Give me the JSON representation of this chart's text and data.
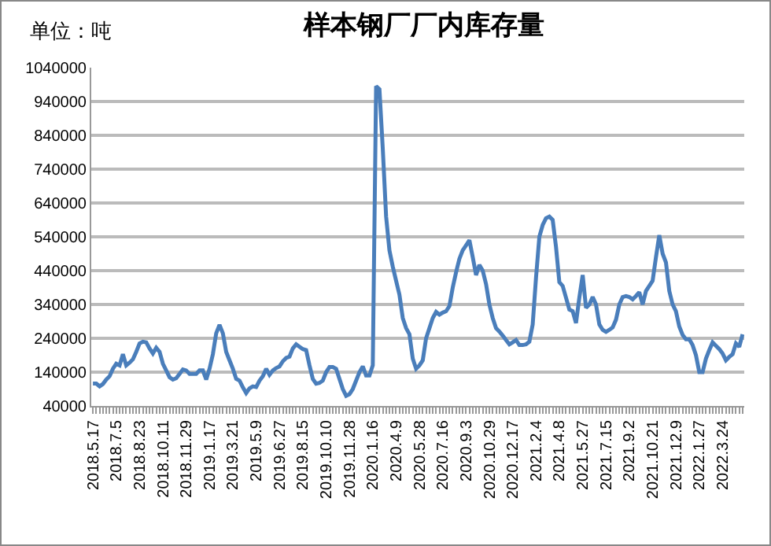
{
  "chart_data": {
    "type": "line",
    "title": "样本钢厂厂内库存量",
    "annotations": [
      "单位：吨"
    ],
    "categories": [
      "2018.5.17",
      null,
      null,
      null,
      null,
      null,
      null,
      "2018.7.5",
      null,
      null,
      null,
      null,
      null,
      null,
      "2018.8.23",
      null,
      null,
      null,
      null,
      null,
      null,
      "2018.10.11",
      null,
      null,
      null,
      null,
      null,
      null,
      "2018.11.29",
      null,
      null,
      null,
      null,
      null,
      null,
      "2019.1.17",
      null,
      null,
      null,
      null,
      null,
      null,
      "2019.3.21",
      null,
      null,
      null,
      null,
      null,
      null,
      "2019.5.9",
      null,
      null,
      null,
      null,
      null,
      null,
      "2019.6.27",
      null,
      null,
      null,
      null,
      null,
      null,
      "2019.8.15",
      null,
      null,
      null,
      null,
      null,
      null,
      "2019.10.10",
      null,
      null,
      null,
      null,
      null,
      null,
      "2019.11.28",
      null,
      null,
      null,
      null,
      null,
      null,
      "2020.1.16",
      null,
      null,
      null,
      null,
      null,
      null,
      "2020.4.9",
      null,
      null,
      null,
      null,
      null,
      null,
      "2020.5.28",
      null,
      null,
      null,
      null,
      null,
      null,
      "2020.7.16",
      null,
      null,
      null,
      null,
      null,
      null,
      "2020.9.3",
      null,
      null,
      null,
      null,
      null,
      null,
      "2020.10.29",
      null,
      null,
      null,
      null,
      null,
      null,
      "2020.12.17",
      null,
      null,
      null,
      null,
      null,
      null,
      "2021.2.4",
      null,
      null,
      null,
      null,
      null,
      null,
      "2021.4.8",
      null,
      null,
      null,
      null,
      null,
      null,
      "2021.5.27",
      null,
      null,
      null,
      null,
      null,
      null,
      "2021.7.15",
      null,
      null,
      null,
      null,
      null,
      null,
      "2021.9.2",
      null,
      null,
      null,
      null,
      null,
      null,
      "2021.10.21",
      null,
      null,
      null,
      null,
      null,
      null,
      "2021.12.9",
      null,
      null,
      null,
      null,
      null,
      null,
      "2022.1.27",
      null,
      null,
      null,
      null,
      null,
      null,
      "2022.3.24",
      null,
      null,
      null,
      null,
      null,
      null
    ],
    "series": [
      {
        "color": "#4a7ebb",
        "values": [
          106000,
          106000,
          98000,
          105000,
          118000,
          128000,
          150000,
          165000,
          160000,
          193000,
          160000,
          168000,
          178000,
          200000,
          225000,
          230000,
          228000,
          210000,
          195000,
          212000,
          200000,
          165000,
          145000,
          125000,
          118000,
          122000,
          135000,
          148000,
          145000,
          135000,
          135000,
          135000,
          145000,
          145000,
          118000,
          150000,
          193000,
          255000,
          280000,
          255000,
          200000,
          175000,
          150000,
          120000,
          115000,
          95000,
          78000,
          92000,
          98000,
          96000,
          115000,
          128000,
          150000,
          132000,
          145000,
          152000,
          157000,
          172000,
          182000,
          186000,
          210000,
          222000,
          215000,
          208000,
          205000,
          160000,
          120000,
          106000,
          108000,
          115000,
          140000,
          155000,
          155000,
          150000,
          120000,
          90000,
          70000,
          75000,
          90000,
          115000,
          140000,
          157000,
          130000,
          130000,
          160000,
          985000,
          976000,
          800000,
          600000,
          500000,
          452000,
          410000,
          369000,
          300000,
          270000,
          252000,
          180000,
          150000,
          160000,
          175000,
          240000,
          270000,
          300000,
          318000,
          310000,
          316000,
          320000,
          335000,
          390000,
          435000,
          475000,
          500000,
          515000,
          530000,
          480000,
          427000,
          457000,
          440000,
          400000,
          340000,
          300000,
          270000,
          260000,
          248000,
          235000,
          222000,
          228000,
          235000,
          220000,
          220000,
          222000,
          230000,
          281000,
          420000,
          540000,
          575000,
          595000,
          600000,
          590000,
          510000,
          406000,
          395000,
          360000,
          325000,
          320000,
          285000,
          360000,
          427000,
          330000,
          340000,
          362000,
          340000,
          281000,
          265000,
          259000,
          265000,
          272000,
          295000,
          340000,
          362000,
          365000,
          362000,
          355000,
          365000,
          376000,
          340000,
          380000,
          395000,
          410000,
          480000,
          545000,
          490000,
          464000,
          380000,
          340000,
          320000,
          275000,
          250000,
          237000,
          237000,
          220000,
          190000,
          140000,
          140000,
          180000,
          205000,
          228000,
          218000,
          208000,
          195000,
          175000,
          185000,
          193000,
          225000,
          215000,
          252000
        ]
      }
    ],
    "ylim": [
      40000,
      1040000
    ],
    "yticks": [
      40000,
      140000,
      240000,
      340000,
      440000,
      540000,
      640000,
      740000,
      840000,
      940000,
      1040000
    ],
    "grid": "y",
    "marker": "none",
    "line_style": "solid"
  }
}
